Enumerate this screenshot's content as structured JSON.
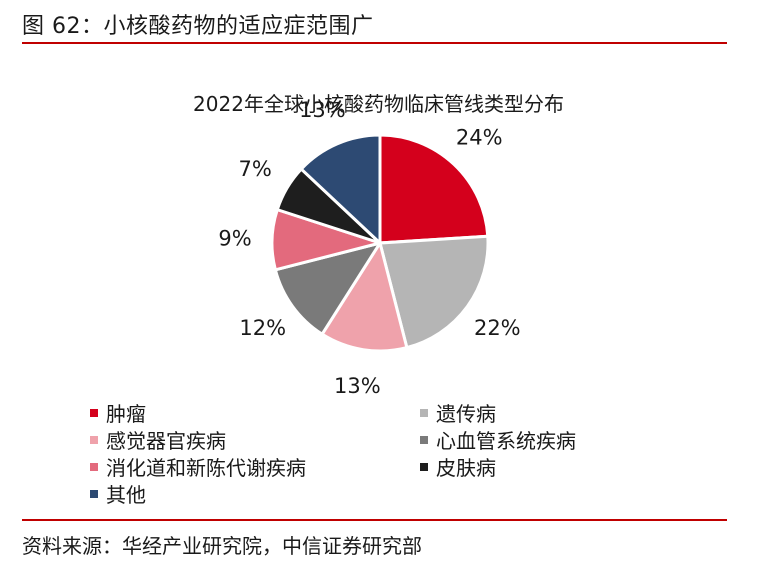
{
  "header": {
    "figure_title": "图 62：小核酸药物的适应症范围广"
  },
  "source": "资料来源：华经产业研究院，中信证券研究部",
  "colors": {
    "rule": "#c00000"
  },
  "chart_data": {
    "type": "pie",
    "title": "2022年全球小核酸药物临床管线类型分布",
    "slices": [
      {
        "name": "肿瘤",
        "value": 24,
        "label": "24%",
        "color": "#d4001c"
      },
      {
        "name": "遗传病",
        "value": 22,
        "label": "22%",
        "color": "#b5b5b5"
      },
      {
        "name": "感觉器官疾病",
        "value": 13,
        "label": "13%",
        "color": "#efa2ab"
      },
      {
        "name": "心血管系统疾病",
        "value": 12,
        "label": "12%",
        "color": "#7a7a7a"
      },
      {
        "name": "消化道和新陈代谢疾病",
        "value": 9,
        "label": "9%",
        "color": "#e36a7d"
      },
      {
        "name": "皮肤病",
        "value": 7,
        "label": "7%",
        "color": "#1e1e1e"
      },
      {
        "name": "其他",
        "value": 13,
        "label": "13%",
        "color": "#2d4a73"
      }
    ],
    "legend_placement": "bottom"
  }
}
